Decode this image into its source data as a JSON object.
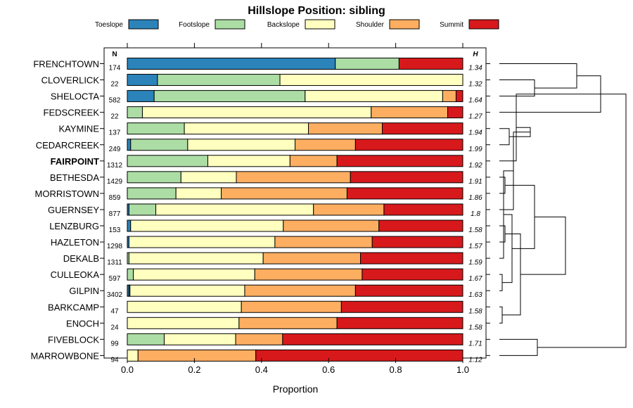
{
  "chart_data": {
    "type": "bar",
    "orientation": "horizontal",
    "stacked": true,
    "title": "Hillslope Position: sibling",
    "xlabel": "Proportion",
    "ylabel": "",
    "xlim": [
      0,
      1
    ],
    "x_ticks": [
      "0.0",
      "0.2",
      "0.4",
      "0.6",
      "0.8",
      "1.0"
    ],
    "n_header": "N",
    "h_header": "H",
    "legend_position": "top",
    "series": [
      {
        "name": "Toeslope",
        "color": "#2b83ba"
      },
      {
        "name": "Footslope",
        "color": "#abdda4"
      },
      {
        "name": "Backslope",
        "color": "#ffffbf"
      },
      {
        "name": "Shoulder",
        "color": "#fdae61"
      },
      {
        "name": "Summit",
        "color": "#d7191c"
      }
    ],
    "rows": [
      {
        "name": "FRENCHTOWN",
        "n": "174",
        "h": "1.34",
        "bold": false,
        "values": [
          0.62,
          0.19,
          0.0,
          0.0,
          0.19
        ]
      },
      {
        "name": "CLOVERLICK",
        "n": "22",
        "h": "1.32",
        "bold": false,
        "values": [
          0.09,
          0.365,
          0.545,
          0.0,
          0.0
        ]
      },
      {
        "name": "SHELOCTA",
        "n": "582",
        "h": "1.64",
        "bold": false,
        "values": [
          0.08,
          0.45,
          0.41,
          0.04,
          0.02
        ]
      },
      {
        "name": "FEDSCREEK",
        "n": "22",
        "h": "1.27",
        "bold": false,
        "values": [
          0.0,
          0.045,
          0.682,
          0.228,
          0.045
        ]
      },
      {
        "name": "KAYMINE",
        "n": "137",
        "h": "1.94",
        "bold": false,
        "values": [
          0.0,
          0.17,
          0.37,
          0.22,
          0.24
        ]
      },
      {
        "name": "CEDARCREEK",
        "n": "249",
        "h": "1.99",
        "bold": false,
        "values": [
          0.01,
          0.17,
          0.32,
          0.18,
          0.32
        ]
      },
      {
        "name": "FAIRPOINT",
        "n": "1312",
        "h": "1.92",
        "bold": true,
        "values": [
          0.0,
          0.24,
          0.245,
          0.14,
          0.375
        ]
      },
      {
        "name": "BETHESDA",
        "n": "1429",
        "h": "1.91",
        "bold": false,
        "values": [
          0.0,
          0.16,
          0.165,
          0.34,
          0.335
        ]
      },
      {
        "name": "MORRISTOWN",
        "n": "859",
        "h": "1.86",
        "bold": false,
        "values": [
          0.0,
          0.145,
          0.135,
          0.375,
          0.345
        ]
      },
      {
        "name": "GUERNSEY",
        "n": "877",
        "h": "1.8",
        "bold": false,
        "values": [
          0.005,
          0.08,
          0.47,
          0.21,
          0.235
        ]
      },
      {
        "name": "LENZBURG",
        "n": "153",
        "h": "1.58",
        "bold": false,
        "values": [
          0.01,
          0.0,
          0.455,
          0.285,
          0.25
        ]
      },
      {
        "name": "HAZLETON",
        "n": "1298",
        "h": "1.57",
        "bold": false,
        "values": [
          0.005,
          0.0,
          0.435,
          0.29,
          0.27
        ]
      },
      {
        "name": "DEKALB",
        "n": "1311",
        "h": "1.59",
        "bold": false,
        "values": [
          0.0,
          0.005,
          0.4,
          0.29,
          0.305
        ]
      },
      {
        "name": "CULLEOKA",
        "n": "597",
        "h": "1.67",
        "bold": false,
        "values": [
          0.0,
          0.018,
          0.362,
          0.32,
          0.3
        ]
      },
      {
        "name": "GILPIN",
        "n": "3402",
        "h": "1.63",
        "bold": false,
        "values": [
          0.005,
          0.003,
          0.342,
          0.33,
          0.32
        ]
      },
      {
        "name": "BARKCAMP",
        "n": "47",
        "h": "1.58",
        "bold": false,
        "values": [
          0.0,
          0.0,
          0.34,
          0.298,
          0.362
        ]
      },
      {
        "name": "ENOCH",
        "n": "24",
        "h": "1.58",
        "bold": false,
        "values": [
          0.0,
          0.0,
          0.333,
          0.292,
          0.375
        ]
      },
      {
        "name": "FIVEBLOCK",
        "n": "99",
        "h": "1.71",
        "bold": false,
        "values": [
          0.0,
          0.11,
          0.213,
          0.14,
          0.537
        ]
      },
      {
        "name": "MARROWBONE",
        "n": "94",
        "h": "1.12",
        "bold": false,
        "values": [
          0.0,
          0.0,
          0.032,
          0.351,
          0.617
        ]
      }
    ],
    "dendrogram": {
      "leaf_order": [
        "FRENCHTOWN",
        "CLOVERLICK",
        "SHELOCTA",
        "FEDSCREEK",
        "KAYMINE",
        "CEDARCREEK",
        "FAIRPOINT",
        "BETHESDA",
        "MORRISTOWN",
        "GUERNSEY",
        "LENZBURG",
        "HAZLETON",
        "DEKALB",
        "CULLEOKA",
        "GILPIN",
        "BARKCAMP",
        "ENOCH",
        "FIVEBLOCK",
        "MARROWBONE"
      ],
      "merges": [
        {
          "a": 1,
          "b": 2,
          "height": 0.25
        },
        {
          "a": 0,
          "b": 19,
          "height": 0.55
        },
        {
          "a": 20,
          "b": 3,
          "height": 0.72
        },
        {
          "a": 4,
          "b": 5,
          "height": 0.07
        },
        {
          "a": 21,
          "b": 6,
          "height": 0.12
        },
        {
          "a": 7,
          "b": 8,
          "height": 0.04
        },
        {
          "a": 22,
          "b": 23,
          "height": 0.22
        },
        {
          "a": 10,
          "b": 11,
          "height": 0.04
        },
        {
          "a": 9,
          "b": 25,
          "height": 0.1
        },
        {
          "a": 13,
          "b": 14,
          "height": 0.02
        },
        {
          "a": 12,
          "b": 27,
          "height": 0.03
        },
        {
          "a": 15,
          "b": 16,
          "height": 0.02
        },
        {
          "a": 28,
          "b": 29,
          "height": 0.09
        },
        {
          "a": 26,
          "b": 30,
          "height": 0.15
        },
        {
          "a": 24,
          "b": 31,
          "height": 0.25
        },
        {
          "a": 17,
          "b": 18,
          "height": 0.27
        },
        {
          "a": 32,
          "b": 33,
          "height": 0.47
        },
        {
          "a": 21,
          "b": 34,
          "height": 0.9
        }
      ]
    }
  }
}
